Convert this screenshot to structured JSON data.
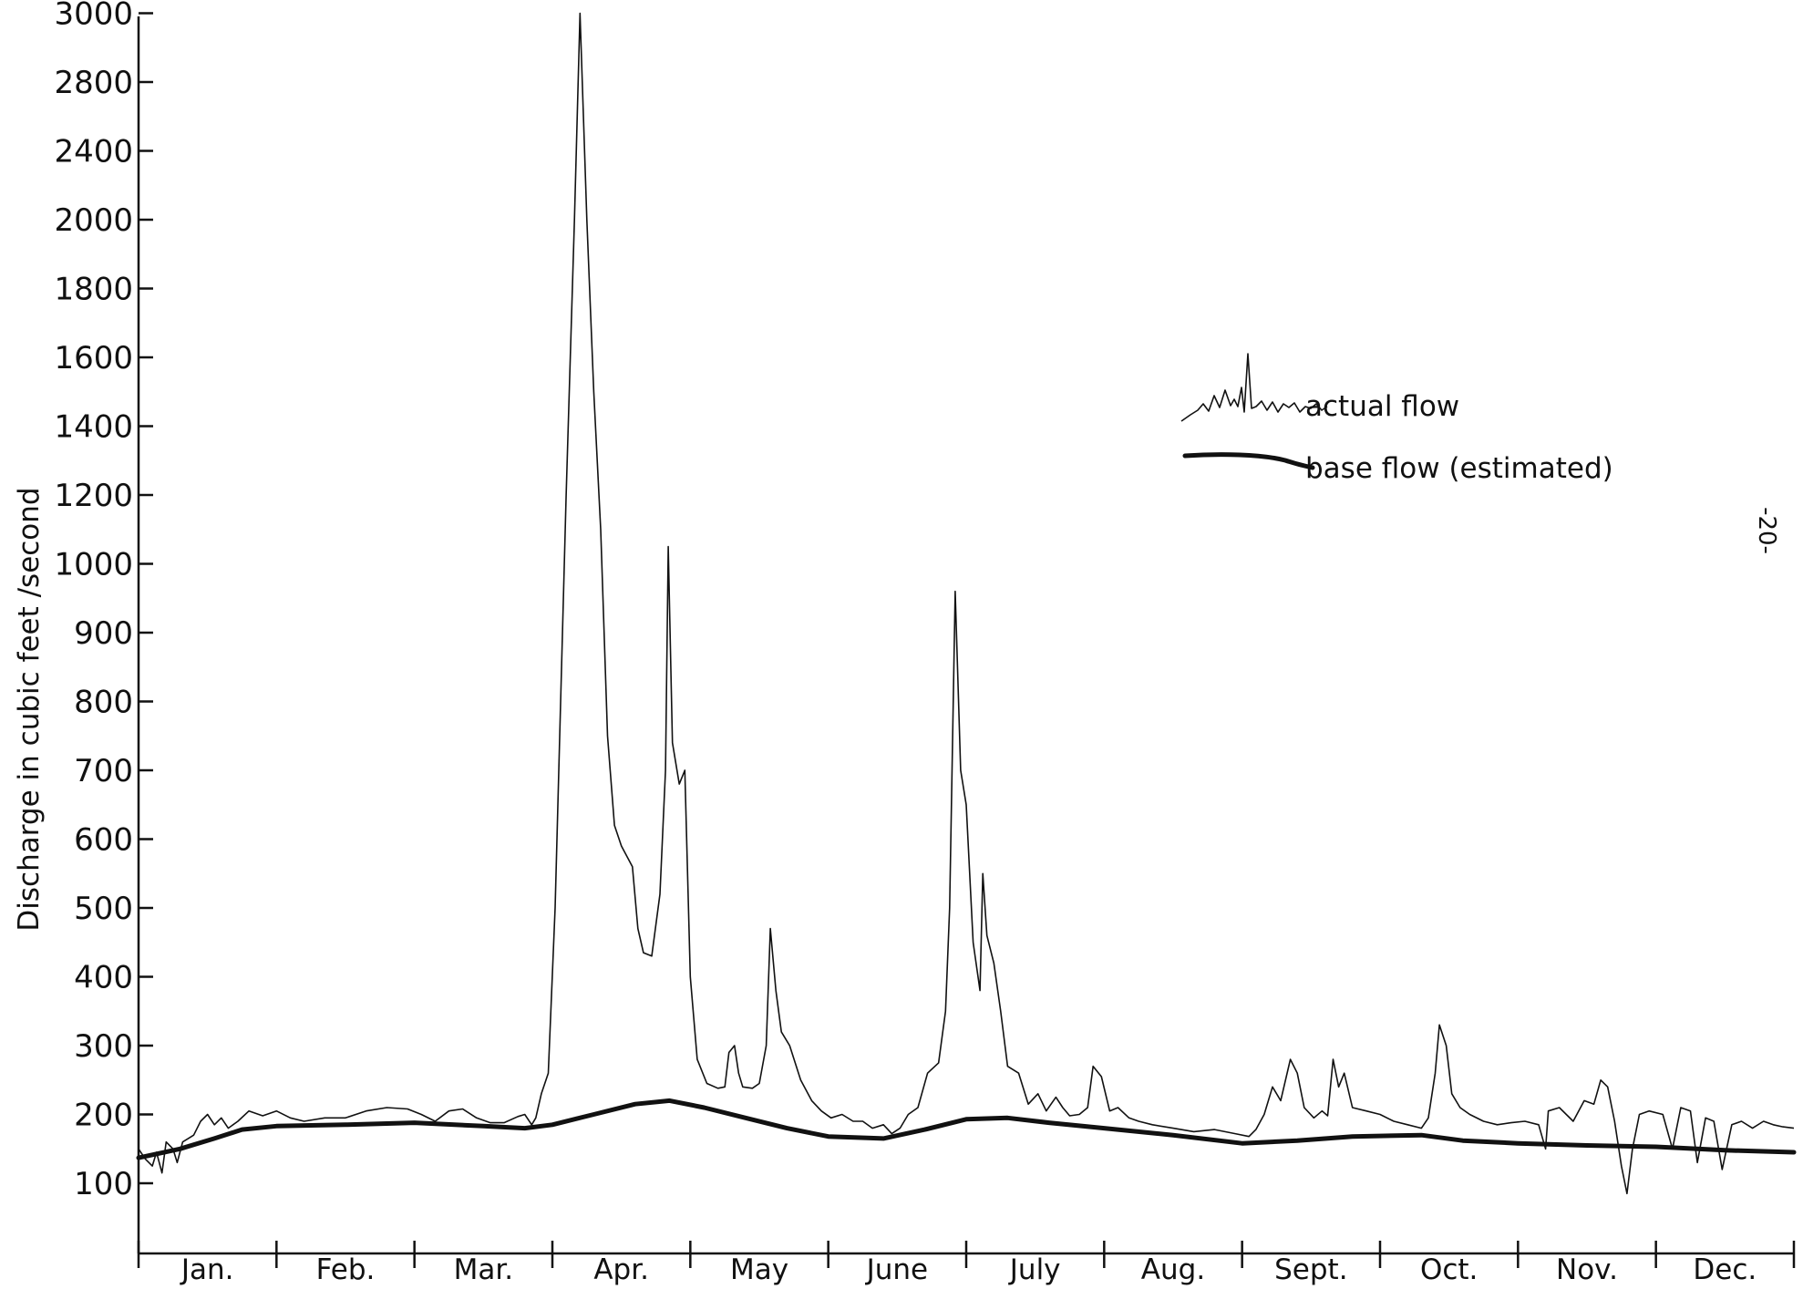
{
  "chart_data": {
    "type": "line",
    "title": "",
    "xlabel": "",
    "ylabel": "Discharge in cubic feet /second",
    "y_ticks": [
      100,
      200,
      300,
      400,
      500,
      600,
      700,
      800,
      900,
      1000,
      1200,
      1400,
      1600,
      1800,
      2000,
      2400,
      2800,
      3000
    ],
    "ylim": [
      0,
      3000
    ],
    "y_scale": "piecewise (100 per step up to 1000, 200 per step above 1000)",
    "months": [
      "Jan.",
      "Feb.",
      "Mar.",
      "Apr.",
      "May",
      "June",
      "July",
      "Aug.",
      "Sept.",
      "Oct.",
      "Nov.",
      "Dec."
    ],
    "x_unit": "month (0 = start of Jan., 12 = end of Dec.)",
    "grid": false,
    "legend_position": "top-right",
    "legend": [
      "actual flow",
      "base flow (estimated)"
    ],
    "page_number": "-20-",
    "series": [
      {
        "name": "actual flow",
        "style": "thin",
        "points": [
          [
            0.0,
            150
          ],
          [
            0.05,
            135
          ],
          [
            0.1,
            125
          ],
          [
            0.13,
            145
          ],
          [
            0.17,
            115
          ],
          [
            0.2,
            160
          ],
          [
            0.25,
            150
          ],
          [
            0.28,
            130
          ],
          [
            0.32,
            160
          ],
          [
            0.36,
            165
          ],
          [
            0.4,
            170
          ],
          [
            0.45,
            190
          ],
          [
            0.5,
            200
          ],
          [
            0.55,
            185
          ],
          [
            0.6,
            195
          ],
          [
            0.65,
            180
          ],
          [
            0.72,
            190
          ],
          [
            0.8,
            205
          ],
          [
            0.9,
            198
          ],
          [
            1.0,
            205
          ],
          [
            1.1,
            195
          ],
          [
            1.2,
            190
          ],
          [
            1.35,
            195
          ],
          [
            1.5,
            195
          ],
          [
            1.65,
            205
          ],
          [
            1.8,
            210
          ],
          [
            1.95,
            208
          ],
          [
            2.05,
            200
          ],
          [
            2.15,
            190
          ],
          [
            2.25,
            205
          ],
          [
            2.35,
            208
          ],
          [
            2.45,
            195
          ],
          [
            2.55,
            188
          ],
          [
            2.65,
            188
          ],
          [
            2.75,
            197
          ],
          [
            2.8,
            200
          ],
          [
            2.85,
            185
          ],
          [
            2.88,
            195
          ],
          [
            2.92,
            230
          ],
          [
            2.97,
            260
          ],
          [
            3.02,
            500
          ],
          [
            3.1,
            1200
          ],
          [
            3.16,
            2000
          ],
          [
            3.2,
            3000
          ],
          [
            3.25,
            2000
          ],
          [
            3.3,
            1500
          ],
          [
            3.35,
            1100
          ],
          [
            3.4,
            750
          ],
          [
            3.45,
            620
          ],
          [
            3.5,
            590
          ],
          [
            3.58,
            560
          ],
          [
            3.62,
            470
          ],
          [
            3.66,
            435
          ],
          [
            3.72,
            430
          ],
          [
            3.78,
            520
          ],
          [
            3.82,
            700
          ],
          [
            3.84,
            1050
          ],
          [
            3.87,
            740
          ],
          [
            3.92,
            680
          ],
          [
            3.96,
            700
          ],
          [
            4.0,
            400
          ],
          [
            4.05,
            280
          ],
          [
            4.12,
            245
          ],
          [
            4.2,
            238
          ],
          [
            4.25,
            240
          ],
          [
            4.28,
            290
          ],
          [
            4.32,
            300
          ],
          [
            4.35,
            260
          ],
          [
            4.38,
            240
          ],
          [
            4.45,
            238
          ],
          [
            4.5,
            245
          ],
          [
            4.55,
            300
          ],
          [
            4.58,
            470
          ],
          [
            4.62,
            380
          ],
          [
            4.66,
            320
          ],
          [
            4.72,
            300
          ],
          [
            4.8,
            250
          ],
          [
            4.88,
            220
          ],
          [
            4.95,
            205
          ],
          [
            5.02,
            195
          ],
          [
            5.1,
            200
          ],
          [
            5.18,
            190
          ],
          [
            5.25,
            190
          ],
          [
            5.32,
            180
          ],
          [
            5.4,
            185
          ],
          [
            5.46,
            172
          ],
          [
            5.52,
            180
          ],
          [
            5.58,
            200
          ],
          [
            5.65,
            210
          ],
          [
            5.72,
            260
          ],
          [
            5.8,
            275
          ],
          [
            5.85,
            350
          ],
          [
            5.88,
            500
          ],
          [
            5.92,
            960
          ],
          [
            5.96,
            700
          ],
          [
            6.0,
            650
          ],
          [
            6.05,
            450
          ],
          [
            6.1,
            380
          ],
          [
            6.12,
            550
          ],
          [
            6.15,
            460
          ],
          [
            6.2,
            420
          ],
          [
            6.25,
            350
          ],
          [
            6.3,
            270
          ],
          [
            6.38,
            260
          ],
          [
            6.45,
            215
          ],
          [
            6.52,
            230
          ],
          [
            6.58,
            205
          ],
          [
            6.65,
            225
          ],
          [
            6.7,
            210
          ],
          [
            6.75,
            198
          ],
          [
            6.82,
            200
          ],
          [
            6.88,
            210
          ],
          [
            6.92,
            270
          ],
          [
            6.98,
            255
          ],
          [
            7.04,
            205
          ],
          [
            7.1,
            210
          ],
          [
            7.18,
            195
          ],
          [
            7.25,
            190
          ],
          [
            7.35,
            185
          ],
          [
            7.5,
            180
          ],
          [
            7.65,
            175
          ],
          [
            7.8,
            178
          ],
          [
            7.95,
            172
          ],
          [
            8.05,
            168
          ],
          [
            8.1,
            178
          ],
          [
            8.16,
            200
          ],
          [
            8.22,
            240
          ],
          [
            8.28,
            220
          ],
          [
            8.35,
            280
          ],
          [
            8.4,
            260
          ],
          [
            8.45,
            210
          ],
          [
            8.52,
            195
          ],
          [
            8.58,
            205
          ],
          [
            8.62,
            198
          ],
          [
            8.66,
            280
          ],
          [
            8.7,
            240
          ],
          [
            8.74,
            260
          ],
          [
            8.8,
            210
          ],
          [
            8.9,
            205
          ],
          [
            9.0,
            200
          ],
          [
            9.1,
            190
          ],
          [
            9.2,
            185
          ],
          [
            9.3,
            180
          ],
          [
            9.35,
            195
          ],
          [
            9.4,
            260
          ],
          [
            9.43,
            330
          ],
          [
            9.48,
            300
          ],
          [
            9.52,
            230
          ],
          [
            9.58,
            210
          ],
          [
            9.65,
            200
          ],
          [
            9.75,
            190
          ],
          [
            9.85,
            185
          ],
          [
            9.95,
            188
          ],
          [
            10.05,
            190
          ],
          [
            10.15,
            185
          ],
          [
            10.2,
            150
          ],
          [
            10.22,
            205
          ],
          [
            10.3,
            210
          ],
          [
            10.4,
            190
          ],
          [
            10.48,
            220
          ],
          [
            10.55,
            215
          ],
          [
            10.6,
            250
          ],
          [
            10.65,
            240
          ],
          [
            10.7,
            190
          ],
          [
            10.75,
            125
          ],
          [
            10.79,
            85
          ],
          [
            10.83,
            150
          ],
          [
            10.88,
            200
          ],
          [
            10.95,
            205
          ],
          [
            11.05,
            200
          ],
          [
            11.12,
            150
          ],
          [
            11.18,
            210
          ],
          [
            11.25,
            205
          ],
          [
            11.3,
            130
          ],
          [
            11.36,
            195
          ],
          [
            11.42,
            190
          ],
          [
            11.48,
            120
          ],
          [
            11.55,
            185
          ],
          [
            11.62,
            190
          ],
          [
            11.7,
            180
          ],
          [
            11.78,
            190
          ],
          [
            11.85,
            185
          ],
          [
            11.92,
            182
          ],
          [
            12.0,
            180
          ]
        ]
      },
      {
        "name": "base flow (estimated)",
        "style": "thick",
        "points": [
          [
            0.0,
            137
          ],
          [
            0.3,
            150
          ],
          [
            0.55,
            165
          ],
          [
            0.75,
            178
          ],
          [
            1.0,
            183
          ],
          [
            1.5,
            185
          ],
          [
            2.0,
            188
          ],
          [
            2.5,
            183
          ],
          [
            2.8,
            180
          ],
          [
            3.0,
            185
          ],
          [
            3.3,
            200
          ],
          [
            3.6,
            215
          ],
          [
            3.85,
            220
          ],
          [
            4.1,
            210
          ],
          [
            4.4,
            195
          ],
          [
            4.7,
            180
          ],
          [
            5.0,
            168
          ],
          [
            5.4,
            165
          ],
          [
            5.7,
            178
          ],
          [
            6.0,
            193
          ],
          [
            6.3,
            195
          ],
          [
            6.6,
            188
          ],
          [
            7.0,
            180
          ],
          [
            7.5,
            170
          ],
          [
            8.0,
            158
          ],
          [
            8.4,
            162
          ],
          [
            8.8,
            168
          ],
          [
            9.3,
            170
          ],
          [
            9.6,
            162
          ],
          [
            10.0,
            158
          ],
          [
            10.5,
            155
          ],
          [
            11.0,
            153
          ],
          [
            11.5,
            148
          ],
          [
            12.0,
            145
          ]
        ]
      }
    ]
  }
}
